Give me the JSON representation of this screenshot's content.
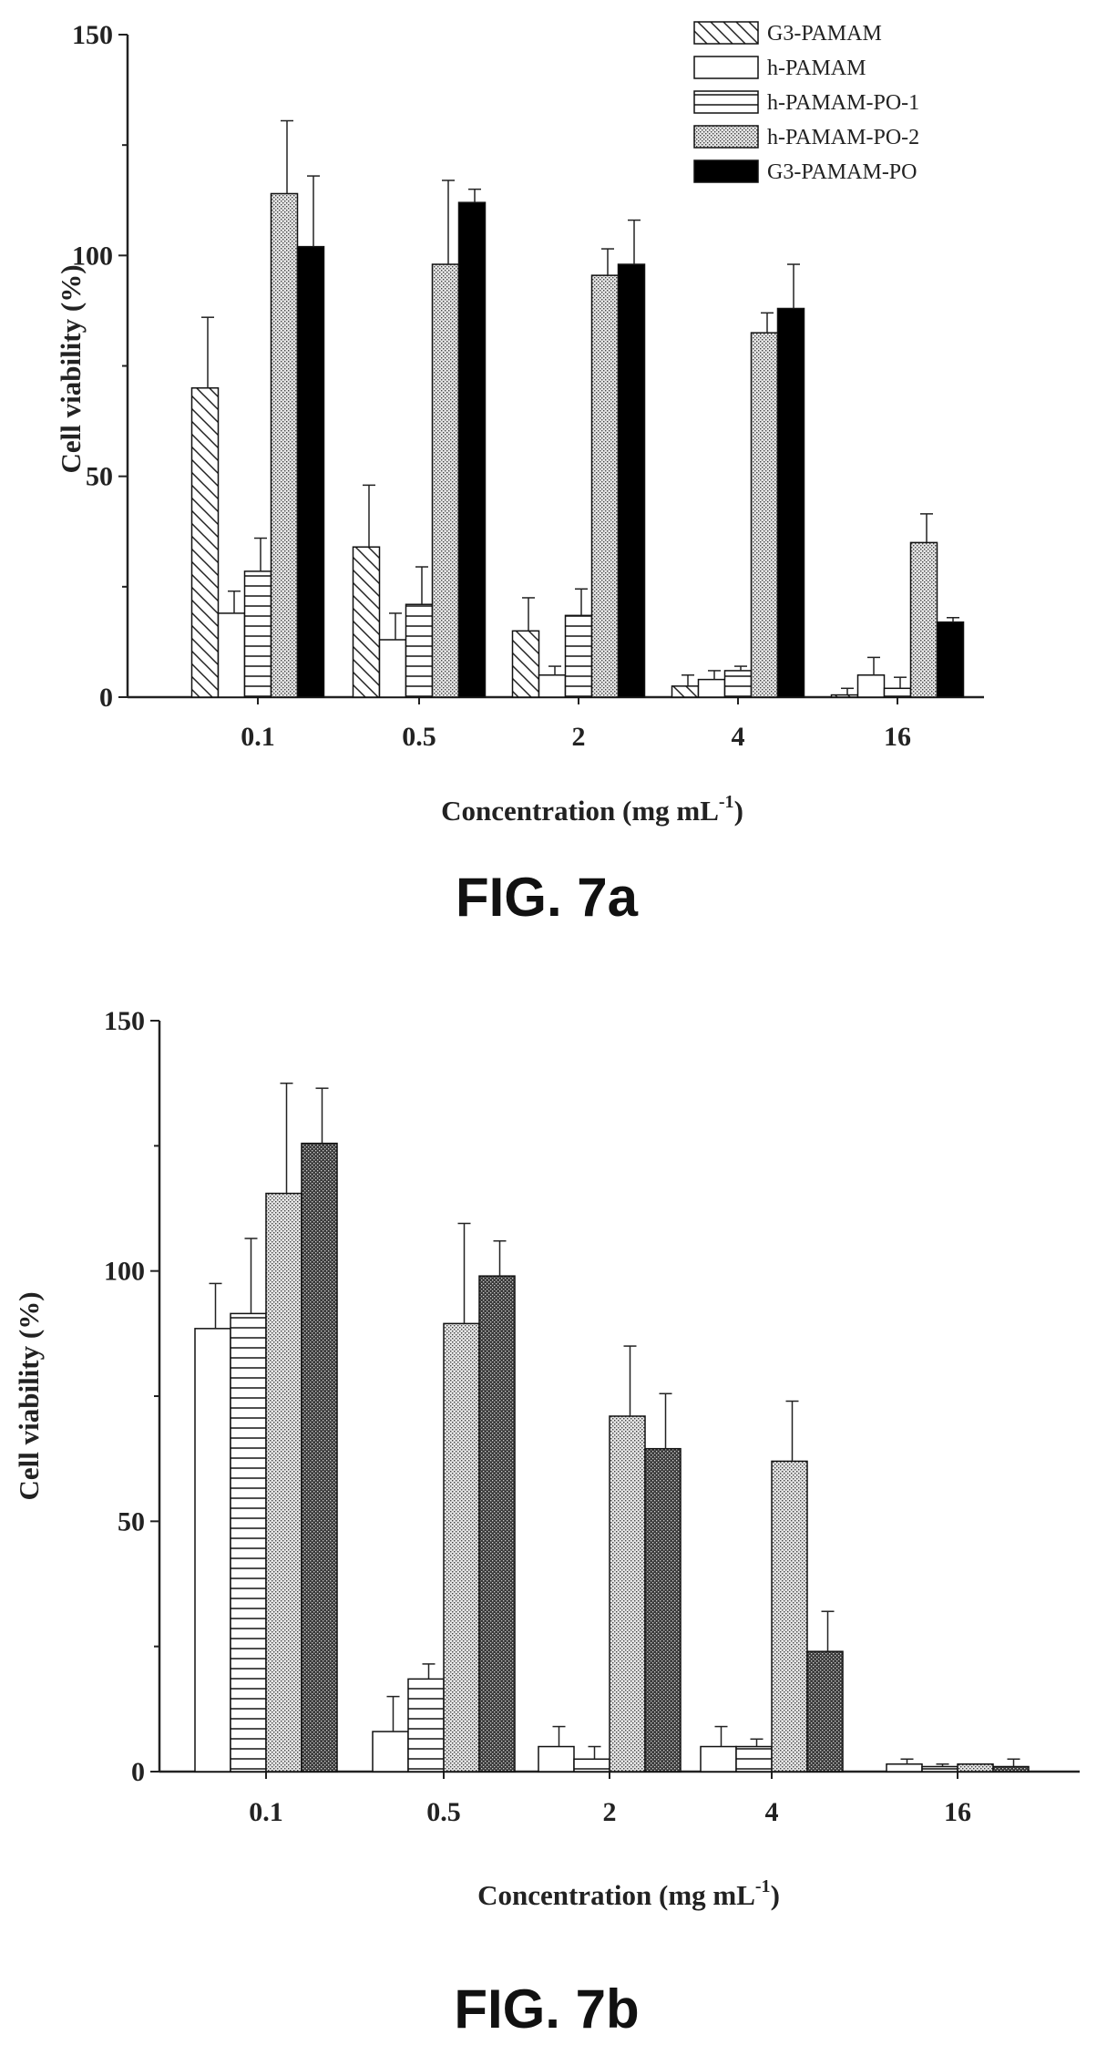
{
  "chart_data": [
    {
      "type": "bar",
      "caption": "FIG. 7a",
      "xlabel": "Concentration (mg mL",
      "xlabel_sup": "-1",
      "xlabel_close": ")",
      "ylabel": "Cell viability (%)",
      "ylim": [
        0,
        150
      ],
      "yticks": [
        "0",
        "50",
        "100",
        "150"
      ],
      "categories": [
        "0.1",
        "0.5",
        "2",
        "4",
        "16"
      ],
      "legend_position": "top-right",
      "series": [
        {
          "name": "G3-PAMAM",
          "pattern": "diagonal",
          "values": [
            70,
            34,
            15,
            2.5,
            0.5
          ],
          "errors": [
            16,
            14,
            7.5,
            2.5,
            1.5
          ]
        },
        {
          "name": "h-PAMAM",
          "pattern": "empty",
          "values": [
            19,
            13,
            5,
            4,
            5
          ],
          "errors": [
            5,
            6,
            2,
            2,
            4
          ]
        },
        {
          "name": "h-PAMAM-PO-1",
          "pattern": "horizontal",
          "values": [
            28.5,
            21,
            18.5,
            6,
            2
          ],
          "errors": [
            7.5,
            8.5,
            6,
            1,
            2.5
          ]
        },
        {
          "name": "h-PAMAM-PO-2",
          "pattern": "dotted",
          "values": [
            114,
            98,
            95.5,
            82.5,
            35
          ],
          "errors": [
            16.5,
            19,
            6,
            4.5,
            6.5
          ]
        },
        {
          "name": "G3-PAMAM-PO",
          "pattern": "solid",
          "values": [
            102,
            112,
            98,
            88,
            17
          ],
          "errors": [
            16,
            3,
            10,
            10,
            1
          ]
        }
      ]
    },
    {
      "type": "bar",
      "caption": "FIG. 7b",
      "xlabel": "Concentration (mg mL",
      "xlabel_sup": "-1",
      "xlabel_close": ")",
      "ylabel": "Cell viability (%)",
      "ylim": [
        0,
        150
      ],
      "yticks": [
        "0",
        "50",
        "100",
        "150"
      ],
      "categories": [
        "0.1",
        "0.5",
        "2",
        "4",
        "16"
      ],
      "series": [
        {
          "pattern": "empty",
          "values": [
            88.5,
            8,
            5,
            5,
            1.5
          ],
          "errors": [
            9,
            7,
            4,
            4,
            1
          ]
        },
        {
          "pattern": "horizontal",
          "values": [
            91.5,
            18.5,
            2.5,
            5,
            1
          ],
          "errors": [
            15,
            3,
            2.5,
            1.5,
            0.5
          ]
        },
        {
          "pattern": "dotted",
          "values": [
            115.5,
            89.5,
            71,
            62,
            1.5
          ],
          "errors": [
            22,
            20,
            14,
            12,
            0
          ]
        },
        {
          "pattern": "crosshatch",
          "values": [
            125.5,
            99,
            64.5,
            24,
            1
          ],
          "errors": [
            11,
            7,
            11,
            8,
            1.5
          ]
        }
      ]
    }
  ]
}
